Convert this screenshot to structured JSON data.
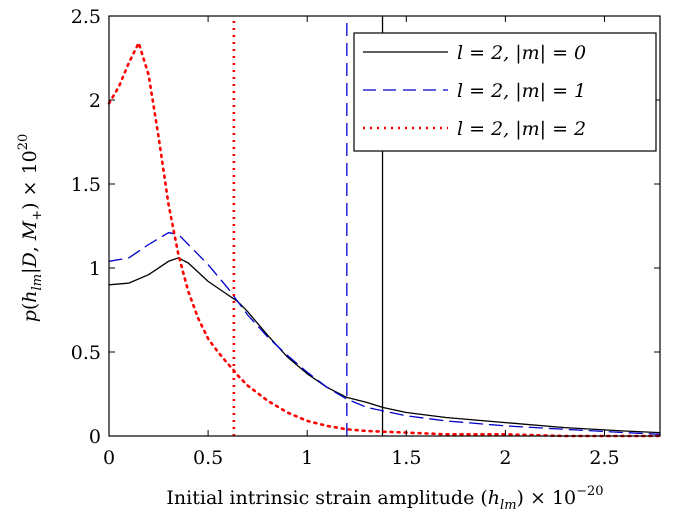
{
  "chart_data": {
    "type": "line",
    "xlabel": "Initial intrinsic strain amplitude (h_lm) × 10^−20",
    "ylabel": "p(h_lm|D, M_+) × 10^20",
    "xlim": [
      0,
      2.78
    ],
    "ylim": [
      0,
      2.5
    ],
    "x_ticks": [
      "0",
      "0.5",
      "1",
      "1.5",
      "2",
      "2.5"
    ],
    "y_ticks": [
      "0",
      "0.5",
      "1",
      "1.5",
      "2",
      "2.5"
    ],
    "x_tick_values": [
      0,
      0.5,
      1,
      1.5,
      2,
      2.5
    ],
    "y_tick_values": [
      0,
      0.5,
      1,
      1.5,
      2,
      2.5
    ],
    "grid": false,
    "legend_position": "top-right",
    "series": [
      {
        "name": "l = 2, |m| = 0",
        "color": "#000000",
        "style": "solid",
        "x": [
          0,
          0.1,
          0.2,
          0.3,
          0.35,
          0.4,
          0.5,
          0.6,
          0.65,
          0.7,
          0.8,
          0.9,
          1.0,
          1.1,
          1.2,
          1.3,
          1.38,
          1.5,
          1.7,
          2.0,
          2.3,
          2.6,
          2.78
        ],
        "y": [
          0.9,
          0.91,
          0.96,
          1.04,
          1.06,
          1.03,
          0.92,
          0.84,
          0.8,
          0.74,
          0.6,
          0.47,
          0.37,
          0.29,
          0.23,
          0.2,
          0.17,
          0.14,
          0.11,
          0.08,
          0.05,
          0.03,
          0.02
        ],
        "cutoff_x": 1.38
      },
      {
        "name": "l = 2, |m| = 1",
        "color": "#0000cc",
        "style": "dashed",
        "x": [
          0,
          0.1,
          0.2,
          0.3,
          0.35,
          0.4,
          0.5,
          0.6,
          0.65,
          0.7,
          0.8,
          0.9,
          1.0,
          1.1,
          1.2,
          1.3,
          1.5,
          1.7,
          2.0,
          2.3,
          2.6,
          2.78
        ],
        "y": [
          1.04,
          1.06,
          1.14,
          1.21,
          1.2,
          1.14,
          1.02,
          0.88,
          0.8,
          0.72,
          0.59,
          0.48,
          0.38,
          0.29,
          0.22,
          0.17,
          0.12,
          0.09,
          0.06,
          0.04,
          0.02,
          0.01
        ],
        "cutoff_x": 1.2
      },
      {
        "name": "l = 2, |m| = 2",
        "color": "#ff0000",
        "style": "dotted",
        "x": [
          0,
          0.05,
          0.1,
          0.15,
          0.2,
          0.25,
          0.3,
          0.35,
          0.4,
          0.45,
          0.5,
          0.55,
          0.6,
          0.63,
          0.65,
          0.7,
          0.8,
          0.9,
          1.0,
          1.1,
          1.2,
          1.3,
          1.5,
          1.7,
          2.0,
          2.3,
          2.6,
          2.78
        ],
        "y": [
          1.98,
          2.08,
          2.22,
          2.34,
          2.15,
          1.78,
          1.38,
          1.08,
          0.86,
          0.7,
          0.58,
          0.5,
          0.43,
          0.39,
          0.36,
          0.3,
          0.21,
          0.14,
          0.09,
          0.06,
          0.04,
          0.03,
          0.02,
          0.01,
          0.01,
          0.0,
          0.0,
          0.0
        ],
        "cutoff_x": 0.63
      }
    ]
  }
}
